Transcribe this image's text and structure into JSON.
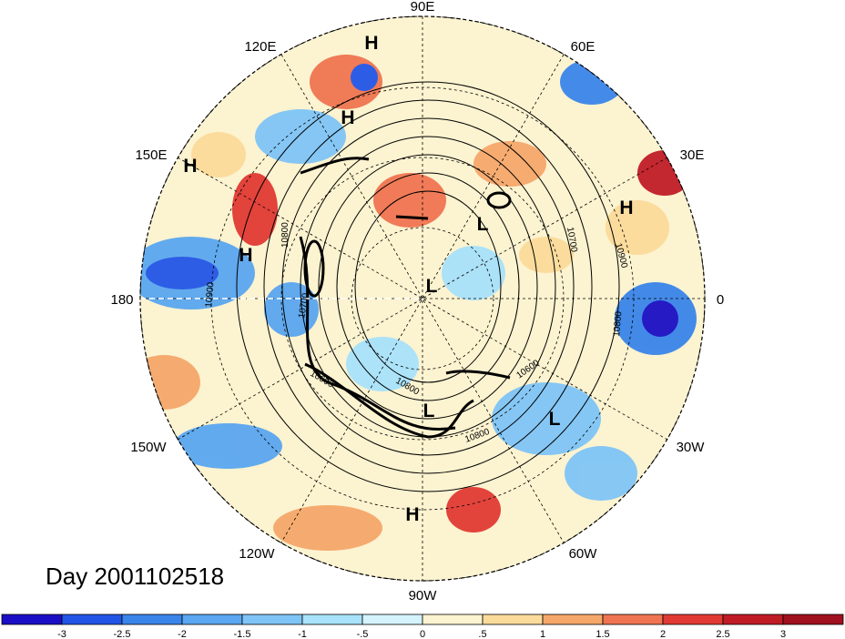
{
  "title": "Day 2001102518",
  "lon_labels": {
    "e90": "90E",
    "e120": "120E",
    "e60": "60E",
    "e150": "150E",
    "e30": "30E",
    "d180": "180",
    "d0": "0",
    "w150": "150W",
    "w30": "30W",
    "w120": "120W",
    "w60": "60W",
    "w90": "90W"
  },
  "pressure_centers": [
    {
      "label": "H"
    },
    {
      "label": "H"
    },
    {
      "label": "H"
    },
    {
      "label": "H"
    },
    {
      "label": "H"
    },
    {
      "label": "H"
    },
    {
      "label": "L"
    },
    {
      "label": "L"
    },
    {
      "label": "L"
    },
    {
      "label": "L"
    }
  ],
  "contour_labels": [
    "10800",
    "10700",
    "10600",
    "10800",
    "10700",
    "10900",
    "10800",
    "10600",
    "10800",
    "10900"
  ],
  "colorbar": {
    "ticks": [
      "-3",
      "-2.5",
      "-2",
      "-1.5",
      "-1",
      "-.5",
      "0",
      ".5",
      "1",
      "1.5",
      "2",
      "2.5",
      "3"
    ],
    "colors": [
      "#1a0fc4",
      "#2255e6",
      "#3a85ea",
      "#5aa6f0",
      "#7fc4f6",
      "#a8e2fb",
      "#d4f3fd",
      "#fcf3d0",
      "#fbdb9a",
      "#f5a76a",
      "#f07451",
      "#e13a34",
      "#c01c26",
      "#a0101e"
    ]
  },
  "icons": {
    "map": "polar-stereographic-map"
  }
}
